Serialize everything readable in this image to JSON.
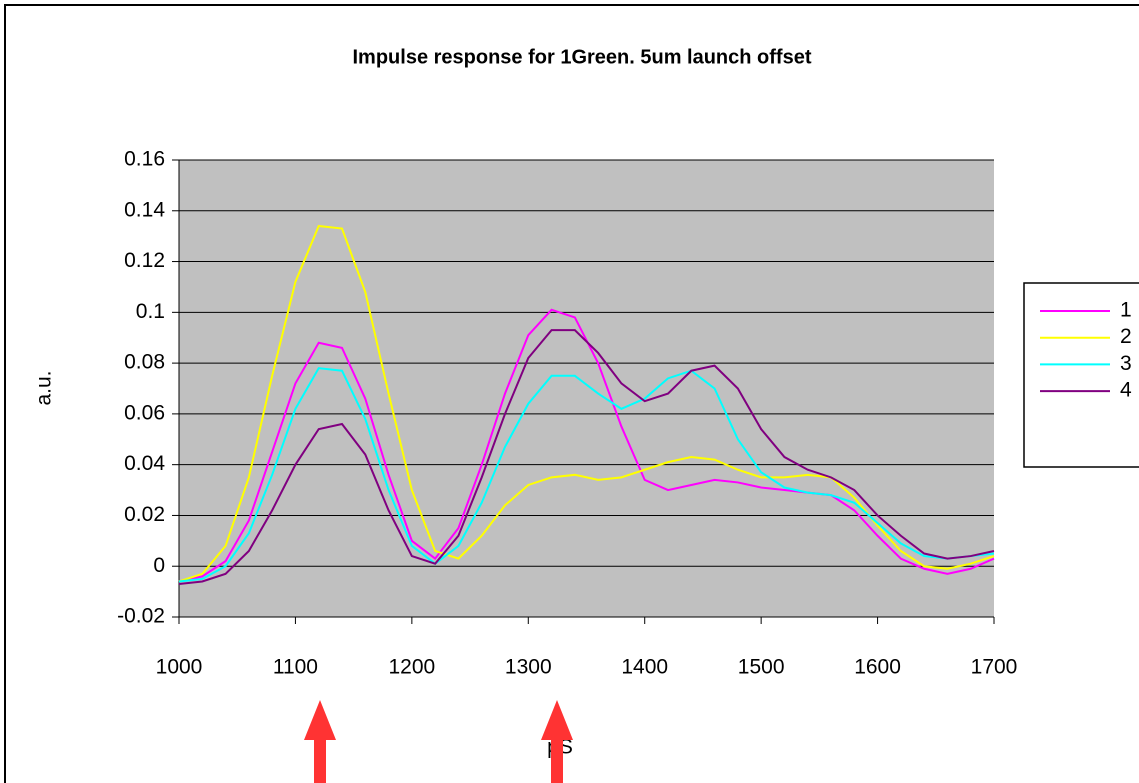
{
  "chart_data": {
    "type": "line",
    "title": "Impulse response for 1Green. 5um launch offset",
    "x_label": "pS",
    "y_label": "a.u.",
    "x": [
      1000,
      1020,
      1040,
      1060,
      1080,
      1100,
      1120,
      1140,
      1160,
      1180,
      1200,
      1220,
      1240,
      1260,
      1280,
      1300,
      1320,
      1340,
      1360,
      1380,
      1400,
      1420,
      1440,
      1460,
      1480,
      1500,
      1520,
      1540,
      1560,
      1580,
      1600,
      1620,
      1640,
      1660,
      1680,
      1700
    ],
    "series": [
      {
        "name": "1",
        "color": "#ff00ff",
        "values": [
          -0.006,
          -0.004,
          0.002,
          0.018,
          0.045,
          0.072,
          0.088,
          0.086,
          0.066,
          0.036,
          0.01,
          0.003,
          0.015,
          0.04,
          0.068,
          0.091,
          0.101,
          0.098,
          0.08,
          0.055,
          0.034,
          0.03,
          0.032,
          0.034,
          0.033,
          0.031,
          0.03,
          0.029,
          0.028,
          0.022,
          0.012,
          0.003,
          -0.001,
          -0.003,
          -0.001,
          0.003
        ]
      },
      {
        "name": "2",
        "color": "#ffff00",
        "values": [
          -0.006,
          -0.003,
          0.008,
          0.035,
          0.075,
          0.112,
          0.134,
          0.133,
          0.108,
          0.068,
          0.03,
          0.006,
          0.003,
          0.012,
          0.024,
          0.032,
          0.035,
          0.036,
          0.034,
          0.035,
          0.038,
          0.041,
          0.043,
          0.042,
          0.038,
          0.035,
          0.035,
          0.036,
          0.035,
          0.027,
          0.016,
          0.006,
          0.0,
          -0.001,
          0.001,
          0.004
        ]
      },
      {
        "name": "3",
        "color": "#00ffff",
        "values": [
          -0.006,
          -0.005,
          0.0,
          0.013,
          0.036,
          0.062,
          0.078,
          0.077,
          0.058,
          0.03,
          0.008,
          0.001,
          0.008,
          0.025,
          0.047,
          0.064,
          0.075,
          0.075,
          0.068,
          0.062,
          0.066,
          0.074,
          0.077,
          0.07,
          0.05,
          0.037,
          0.031,
          0.029,
          0.028,
          0.025,
          0.017,
          0.009,
          0.004,
          0.003,
          0.004,
          0.005
        ]
      },
      {
        "name": "4",
        "color": "#800080",
        "values": [
          -0.007,
          -0.006,
          -0.003,
          0.006,
          0.022,
          0.04,
          0.054,
          0.056,
          0.044,
          0.022,
          0.004,
          0.001,
          0.012,
          0.035,
          0.06,
          0.082,
          0.093,
          0.093,
          0.084,
          0.072,
          0.065,
          0.068,
          0.077,
          0.079,
          0.07,
          0.054,
          0.043,
          0.038,
          0.035,
          0.03,
          0.02,
          0.012,
          0.005,
          0.003,
          0.004,
          0.006
        ]
      }
    ],
    "xlim": [
      1000,
      1700
    ],
    "xticks": [
      1000,
      1100,
      1200,
      1300,
      1400,
      1500,
      1600,
      1700
    ],
    "ylim": [
      -0.02,
      0.16
    ],
    "yticks": [
      -0.02,
      0,
      0.02,
      0.04,
      0.06,
      0.08,
      0.1,
      0.12,
      0.14,
      0.16
    ],
    "grid": true,
    "legend": "right",
    "plot_background": "#c0c0c0"
  }
}
